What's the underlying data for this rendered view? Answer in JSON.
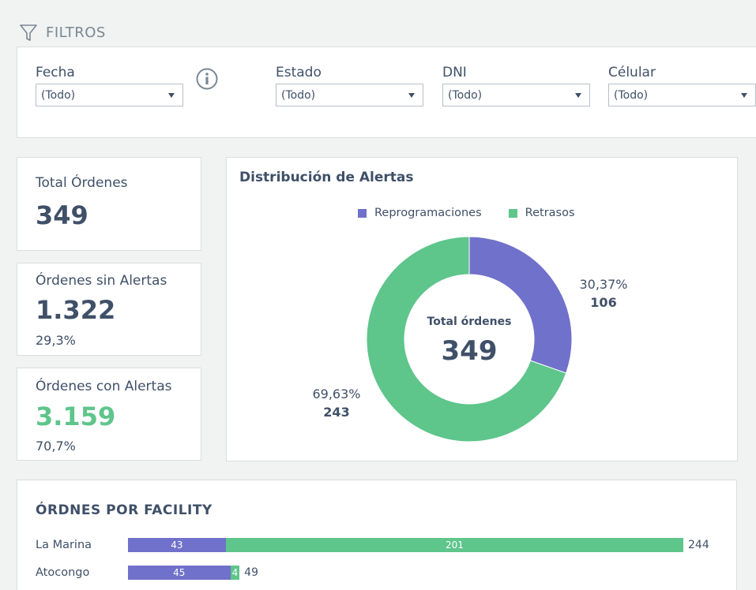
{
  "filters": {
    "header": "FILTROS",
    "items": [
      {
        "label": "Fecha",
        "value": "(Todo)"
      },
      {
        "label": "Estado",
        "value": "(Todo)"
      },
      {
        "label": "DNI",
        "value": "(Todo)"
      },
      {
        "label": "Célular",
        "value": "(Todo)"
      }
    ]
  },
  "kpis": {
    "total": {
      "title": "Total Órdenes",
      "value": "349"
    },
    "sin_alertas": {
      "title": "Órdenes sin Alertas",
      "value": "1.322",
      "pct": "29,3%"
    },
    "con_alertas": {
      "title": "Órdenes con Alertas",
      "value": "3.159",
      "pct": "70,7%"
    }
  },
  "colors": {
    "reprogramaciones": "#7071cb",
    "retrasos": "#5ec58b",
    "text": "#3f5068"
  },
  "chart_data": [
    {
      "type": "pie",
      "title": "Distribución de Alertas",
      "center_label": "Total órdenes",
      "center_value": "349",
      "legend_position": "top",
      "slices": [
        {
          "name": "Reprogramaciones",
          "value": 106,
          "percent_label": "30,37%",
          "value_label": "106"
        },
        {
          "name": "Retrasos",
          "value": 243,
          "percent_label": "69,63%",
          "value_label": "243"
        }
      ]
    },
    {
      "type": "bar",
      "orientation": "horizontal",
      "stacked": true,
      "title": "ÓRDNES POR FACILITY",
      "categories": [
        "La Marina",
        "Atocongo"
      ],
      "series": [
        {
          "name": "Reprogramaciones",
          "values": [
            43,
            45
          ]
        },
        {
          "name": "Retrasos",
          "values": [
            201,
            4
          ]
        }
      ],
      "totals": [
        244,
        49
      ]
    }
  ]
}
